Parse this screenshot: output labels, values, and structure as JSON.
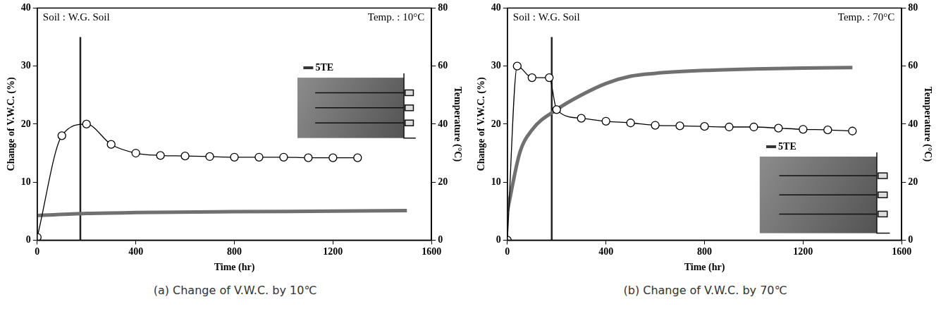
{
  "chart_data": [
    {
      "type": "line",
      "title": "(a) Change of V.W.C. by 10℃",
      "annotations": [
        "Soil : W.G. Soil",
        "Temp. : 10°C",
        "5TE"
      ],
      "x_label": "Time (hr)",
      "y_label": "Change of V.W.C. (%)",
      "y2_label": "Temperature (°C)",
      "xlim": [
        0,
        1600
      ],
      "xticks": [
        0,
        400,
        800,
        1200,
        1600
      ],
      "ylim": [
        0,
        40
      ],
      "yticks": [
        0,
        10,
        20,
        30,
        40
      ],
      "y2lim": [
        0,
        80
      ],
      "y2ticks": [
        0,
        20,
        40,
        60,
        80
      ],
      "grid": false,
      "series": [
        {
          "color": "#000000",
          "marker": "circle",
          "line_style": "solid",
          "x": [
            0,
            100,
            200,
            300,
            400,
            500,
            600,
            700,
            800,
            900,
            1000,
            1100,
            1200,
            1300
          ],
          "values": [
            0.5,
            18,
            20,
            16.5,
            15,
            14.6,
            14.5,
            14.4,
            14.3,
            14.3,
            14.3,
            14.2,
            14.2,
            14.2
          ]
        },
        {
          "color": "#707070",
          "marker": "none",
          "line_style": "solid",
          "axis": "y2",
          "x": [
            0,
            200,
            400,
            800,
            1200,
            1500
          ],
          "values": [
            8.5,
            9.2,
            9.5,
            9.8,
            10,
            10.2
          ]
        },
        {
          "color": "#222222",
          "marker": "none",
          "line_style": "solid",
          "x": [
            175,
            175
          ],
          "values": [
            0,
            35
          ]
        }
      ]
    },
    {
      "type": "line",
      "title": "(b) Change of V.W.C. by 70℃",
      "annotations": [
        "Soil : W.G. Soil",
        "Temp. : 70°C",
        "5TE"
      ],
      "x_label": "Time (hr)",
      "y_label": "Change of V.W.C. (%)",
      "y2_label": "Temperature (°C)",
      "xlim": [
        0,
        1600
      ],
      "xticks": [
        0,
        400,
        800,
        1200,
        1600
      ],
      "ylim": [
        0,
        40
      ],
      "yticks": [
        0,
        10,
        20,
        30,
        40
      ],
      "y2lim": [
        0,
        80
      ],
      "y2ticks": [
        0,
        20,
        40,
        60,
        80
      ],
      "grid": false,
      "series": [
        {
          "color": "#000000",
          "marker": "circle",
          "line_style": "solid",
          "x": [
            0,
            40,
            100,
            170,
            200,
            300,
            400,
            500,
            600,
            700,
            800,
            900,
            1000,
            1100,
            1200,
            1300,
            1400
          ],
          "values": [
            0,
            30,
            28,
            28,
            22.5,
            21,
            20.5,
            20.2,
            19.8,
            19.7,
            19.6,
            19.5,
            19.5,
            19.3,
            19.1,
            19,
            18.8
          ]
        },
        {
          "color": "#707070",
          "marker": "none",
          "line_style": "solid",
          "axis": "y2",
          "x": [
            0,
            50,
            100,
            200,
            300,
            400,
            500,
            600,
            800,
            1000,
            1200,
            1400
          ],
          "values": [
            10,
            30,
            38,
            45,
            50,
            54,
            56.5,
            57.5,
            58.5,
            59,
            59.3,
            59.5
          ]
        },
        {
          "color": "#222222",
          "marker": "none",
          "line_style": "solid",
          "x": [
            180,
            180
          ],
          "values": [
            0,
            35
          ]
        }
      ]
    }
  ]
}
